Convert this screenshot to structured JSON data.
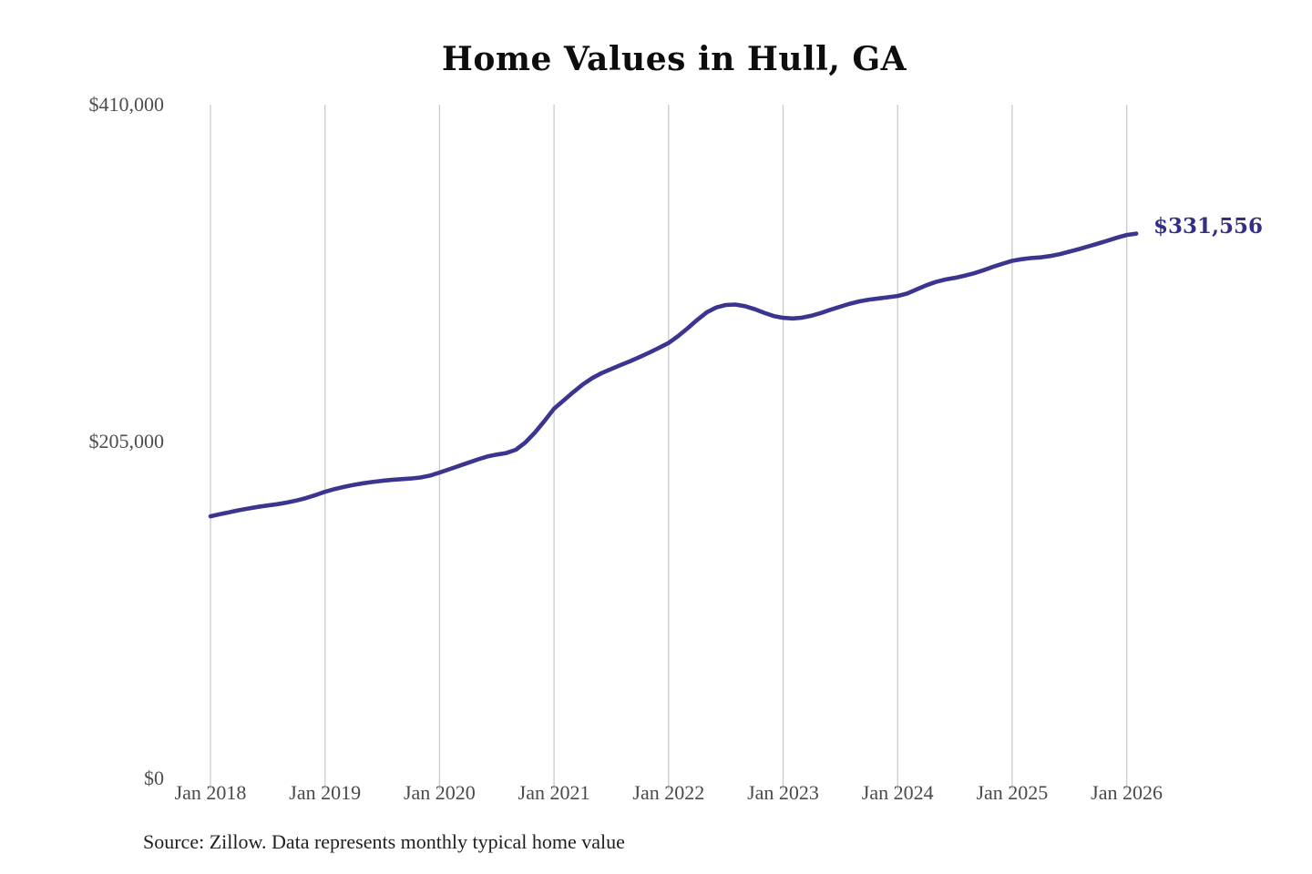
{
  "title": "Home Values in Hull, GA",
  "source_note": "Source: Zillow. Data represents monthly typical home value",
  "colors": {
    "line": "#3b3590",
    "end_label": "#332f87",
    "gridline": "#cbcbcb",
    "axis_text": "#4d4d4d",
    "title_text": "#0d0d0d",
    "source_text": "#1f1f1f",
    "background": "#ffffff"
  },
  "chart_data": {
    "type": "line",
    "title": "Home Values in Hull, GA",
    "xlabel": "",
    "ylabel": "",
    "ylim": [
      0,
      410000
    ],
    "y_ticks": [
      0,
      205000,
      410000
    ],
    "y_tick_labels": {
      "top": "$410,000",
      "middle": "$205,000",
      "bottom": "$0"
    },
    "x_tick_labels": [
      "Jan 2018",
      "Jan 2019",
      "Jan 2020",
      "Jan 2021",
      "Jan 2022",
      "Jan 2023",
      "Jan 2024",
      "Jan 2025",
      "Jan 2026"
    ],
    "grid": "vertical-only",
    "legend": "none",
    "final_value": 331556,
    "final_value_label": "$331,556",
    "series": [
      {
        "name": "Monthly typical home value",
        "start_month": "2018-01",
        "end_month": "2026-02",
        "interval": "monthly",
        "values": [
          159500,
          160800,
          162000,
          163200,
          164300,
          165300,
          166100,
          166900,
          167900,
          169100,
          170600,
          172400,
          174400,
          176100,
          177400,
          178600,
          179600,
          180400,
          181100,
          181700,
          182100,
          182500,
          183100,
          184300,
          186100,
          188100,
          190100,
          192100,
          194100,
          195900,
          197100,
          198000,
          200000,
          204500,
          210500,
          217500,
          225000,
          230000,
          235000,
          239700,
          243600,
          246700,
          249200,
          251600,
          254000,
          256500,
          259200,
          262000,
          265000,
          269200,
          274000,
          279000,
          283600,
          286600,
          288100,
          288400,
          287400,
          285600,
          283400,
          281400,
          280300,
          279900,
          280400,
          281600,
          283300,
          285300,
          287100,
          288900,
          290300,
          291400,
          292100,
          292800,
          293600,
          295100,
          297600,
          300100,
          302100,
          303600,
          304600,
          305900,
          307400,
          309300,
          311300,
          313200,
          315000,
          316000,
          316700,
          317100,
          317900,
          319100,
          320600,
          322100,
          323800,
          325500,
          327300,
          329100,
          330700,
          331556
        ]
      }
    ]
  }
}
